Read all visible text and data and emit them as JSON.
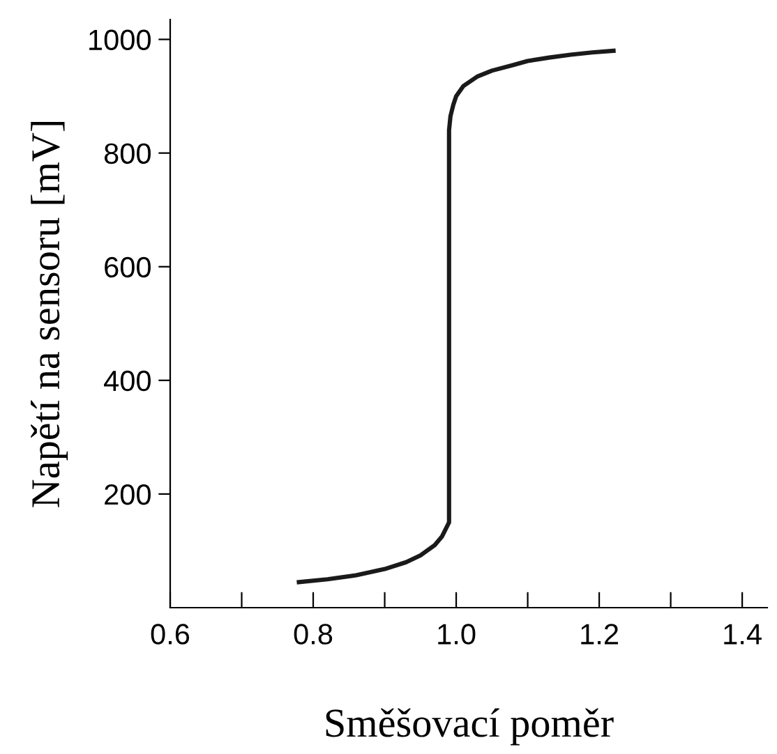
{
  "chart_data": {
    "type": "line",
    "xlabel": "Směšovací poměr",
    "ylabel": "Napětí na sensoru [mV]",
    "series": [
      {
        "color": "#1a1a1a",
        "x": [
          0.78,
          0.82,
          0.86,
          0.9,
          0.93,
          0.95,
          0.97,
          0.98,
          0.99,
          0.99,
          0.992,
          0.996,
          1.0,
          1.01,
          1.03,
          1.05,
          1.08,
          1.1,
          1.13,
          1.16,
          1.19,
          1.22
        ],
        "values": [
          45,
          50,
          57,
          68,
          80,
          92,
          110,
          125,
          150,
          840,
          865,
          885,
          900,
          918,
          935,
          945,
          955,
          962,
          968,
          973,
          977,
          980
        ]
      }
    ],
    "xlim": [
      0.6,
      1.435
    ],
    "ylim": [
      0,
      1035
    ],
    "xticks": [
      0.6,
      {
        "value": 0.7,
        "label": null
      },
      0.8,
      {
        "value": 0.9,
        "label": null
      },
      {
        "value": 1.0,
        "label": "1.0"
      },
      {
        "value": 1.1,
        "label": null
      },
      1.2,
      {
        "value": 1.3,
        "label": null
      },
      1.4
    ],
    "yticks": [
      200,
      400,
      600,
      800,
      1000
    ],
    "grid": false,
    "legend": false,
    "marker": "none",
    "line_style": "solid"
  }
}
